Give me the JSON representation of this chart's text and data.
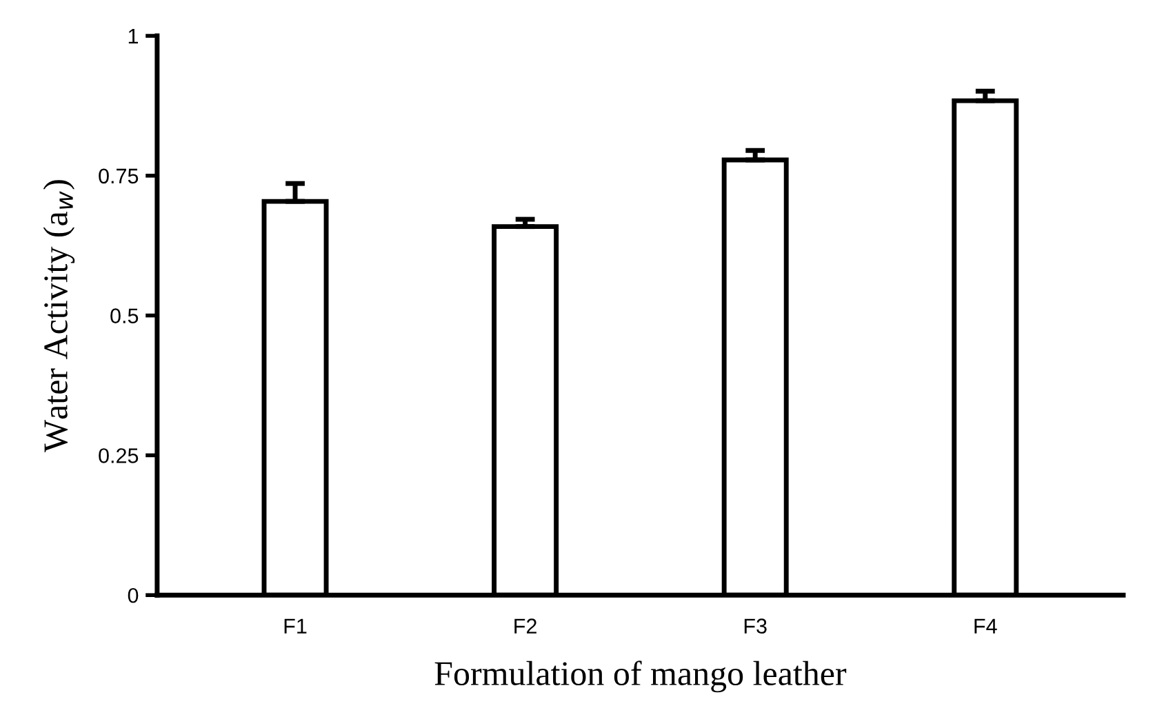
{
  "chart_data": {
    "type": "bar",
    "xlabel": "Formulation of mango leather",
    "ylabel": "Water Activity (a$_{w}$)",
    "categories": [
      "F1",
      "F2",
      "F3",
      "F4"
    ],
    "values": [
      0.704,
      0.659,
      0.778,
      0.884
    ],
    "errors": [
      [
        0.704,
        0.736
      ],
      [
        0.659,
        0.672
      ],
      [
        0.778,
        0.795
      ],
      [
        0.884,
        0.901
      ]
    ],
    "color": "#ffffff",
    "ylim": [
      0,
      1
    ],
    "yticks": [
      0,
      0.25,
      0.5,
      0.75,
      1
    ],
    "grid": false,
    "legend": false
  }
}
